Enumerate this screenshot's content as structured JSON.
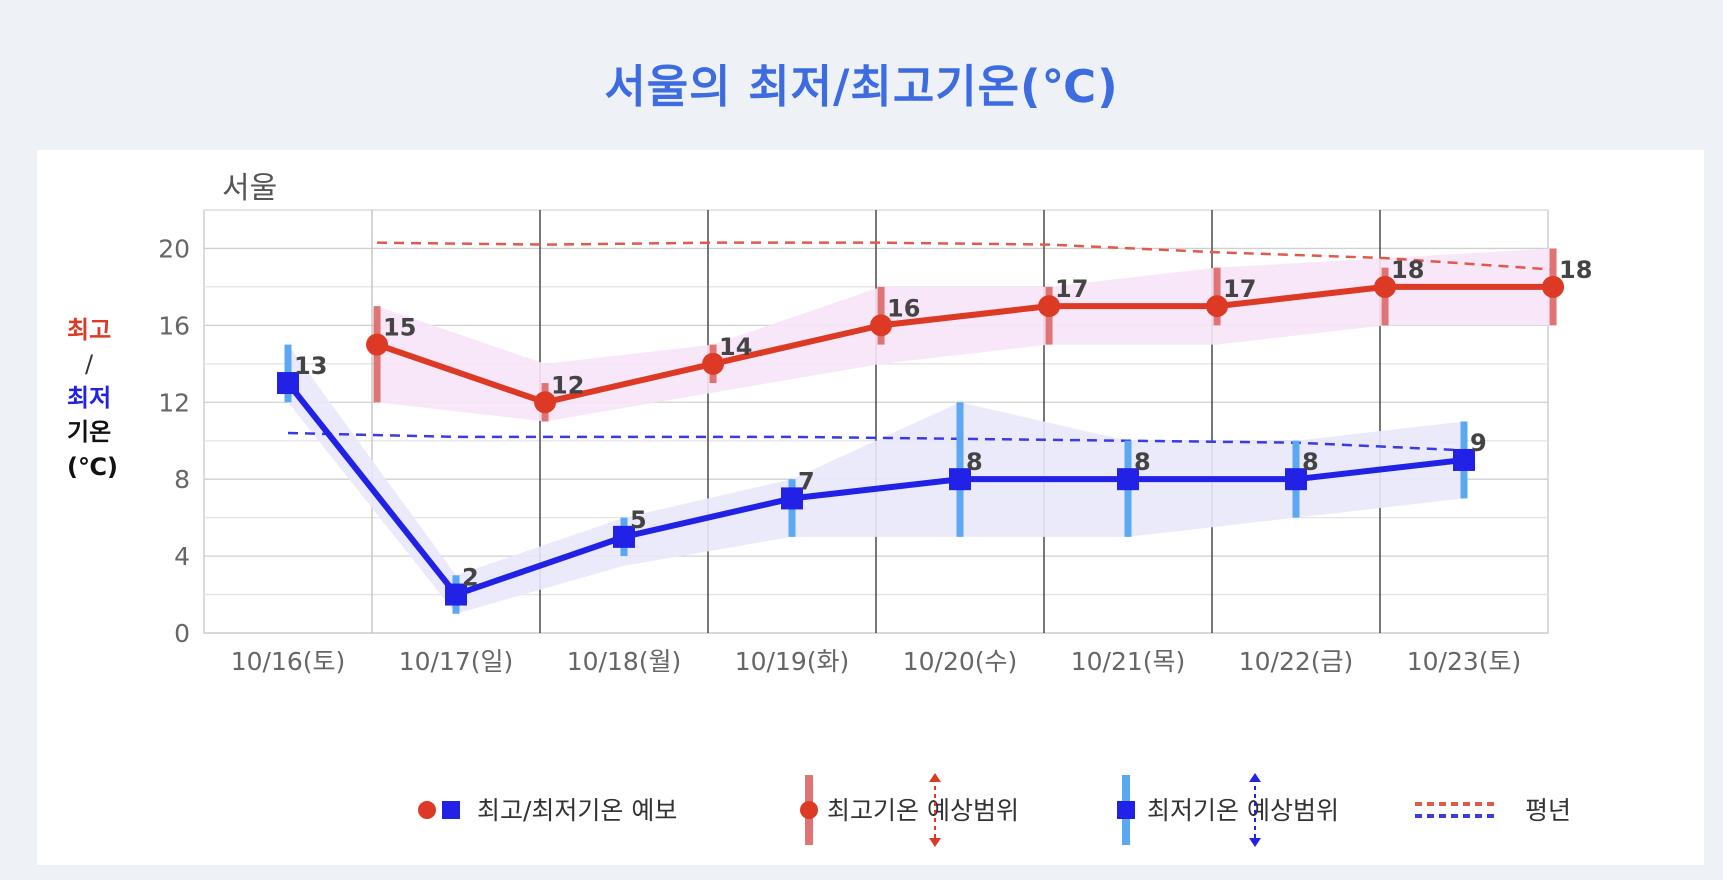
{
  "page": {
    "title": "서울의 최저/최고기온(℃)"
  },
  "chart_data": {
    "type": "line",
    "title": "서울",
    "ylabel": {
      "max_label": "최고",
      "slash": "/",
      "min_label": "최저",
      "line3": "기온",
      "line4": "(℃)"
    },
    "ylim": [
      0,
      22
    ],
    "yticks": [
      0,
      4,
      8,
      12,
      16,
      20
    ],
    "grid": true,
    "categories": [
      "10/16(토)",
      "10/17(일)",
      "10/18(월)",
      "10/19(화)",
      "10/20(수)",
      "10/21(목)",
      "10/22(금)",
      "10/23(토)"
    ],
    "series": [
      {
        "name": "최고기온 예보",
        "color": "#dd3a26",
        "marker": "circle",
        "points": [
          {
            "x": 0.53,
            "y": 15
          },
          {
            "x": 1.53,
            "y": 12
          },
          {
            "x": 2.53,
            "y": 14
          },
          {
            "x": 3.53,
            "y": 16
          },
          {
            "x": 4.53,
            "y": 17
          },
          {
            "x": 5.53,
            "y": 17
          },
          {
            "x": 6.53,
            "y": 18
          },
          {
            "x": 7.53,
            "y": 18
          }
        ],
        "labels": [
          "15",
          "12",
          "14",
          "16",
          "17",
          "17",
          "18",
          "18"
        ],
        "range_low": [
          12,
          11,
          13,
          15,
          15,
          16,
          16,
          16
        ],
        "range_high": [
          17,
          13,
          15,
          18,
          18,
          19,
          19,
          20
        ],
        "band_low": [
          12,
          11,
          12.5,
          14,
          15,
          15,
          16,
          16
        ],
        "band_high": [
          17,
          14,
          15,
          18,
          18,
          19,
          19.5,
          20
        ]
      },
      {
        "name": "최저기온 예보",
        "color": "#2222e6",
        "marker": "square",
        "points": [
          {
            "x": 0,
            "y": 13
          },
          {
            "x": 1,
            "y": 2
          },
          {
            "x": 2,
            "y": 5
          },
          {
            "x": 3,
            "y": 7
          },
          {
            "x": 4,
            "y": 8
          },
          {
            "x": 5,
            "y": 8
          },
          {
            "x": 6,
            "y": 8
          },
          {
            "x": 7,
            "y": 9
          }
        ],
        "labels": [
          "13",
          "2",
          "5",
          "7",
          "8",
          "8",
          "8",
          "9"
        ],
        "range_low": [
          12,
          1,
          4,
          5,
          5,
          5,
          6,
          7
        ],
        "range_high": [
          15,
          3,
          6,
          8,
          12,
          10,
          10,
          11
        ],
        "band_low": [
          12,
          1,
          3.5,
          5,
          5,
          5,
          6,
          7
        ],
        "band_high": [
          15,
          3,
          6,
          8,
          12,
          10,
          10,
          11
        ]
      }
    ],
    "normals": [
      {
        "name": "최고 평년",
        "color": "#e05a4a",
        "points": [
          {
            "x": 0.53,
            "y": 20.3
          },
          {
            "x": 1.53,
            "y": 20.2
          },
          {
            "x": 2.53,
            "y": 20.3
          },
          {
            "x": 3.53,
            "y": 20.3
          },
          {
            "x": 4.53,
            "y": 20.2
          },
          {
            "x": 5.53,
            "y": 19.8
          },
          {
            "x": 6.53,
            "y": 19.5
          },
          {
            "x": 7.53,
            "y": 18.9
          }
        ]
      },
      {
        "name": "최저 평년",
        "color": "#3a3ae6",
        "points": [
          {
            "x": 0,
            "y": 10.4
          },
          {
            "x": 1,
            "y": 10.2
          },
          {
            "x": 2,
            "y": 10.2
          },
          {
            "x": 3,
            "y": 10.2
          },
          {
            "x": 4,
            "y": 10.1
          },
          {
            "x": 5,
            "y": 10
          },
          {
            "x": 6,
            "y": 9.9
          },
          {
            "x": 7,
            "y": 9.5
          }
        ]
      }
    ],
    "legend": {
      "placement": "bottom",
      "items": [
        "최고/최저기온 예보",
        "최고기온 예상범위",
        "최저기온 예상범위",
        "평년"
      ]
    },
    "colors": {
      "max_line": "#dd3a26",
      "min_line": "#2222e6",
      "max_bar": "#e07474",
      "min_bar": "#5aa8f2",
      "max_band": "#f7e4f7",
      "min_band": "#e9e8fb",
      "max_normal": "#e05a4a",
      "min_normal": "#3a3ae6"
    }
  }
}
